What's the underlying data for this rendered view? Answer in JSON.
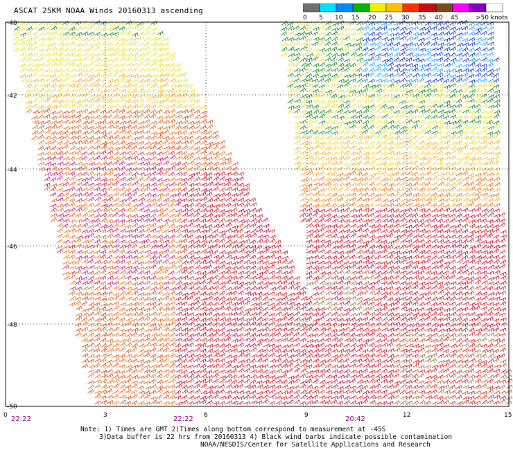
{
  "title": "ASCAT 25KM NOAA Winds 20160313 ascending",
  "legend": {
    "labels": [
      "0",
      "5",
      "10",
      "15",
      "20",
      "25",
      "30",
      "35",
      "40",
      "45",
      ">50 knots"
    ],
    "colors": [
      "#6e6e6e",
      "#00e0ff",
      "#0088ff",
      "#00b400",
      "#f0f000",
      "#ffc000",
      "#ff3000",
      "#c01010",
      "#7a4a1a",
      "#ff00ff",
      "#8000c0",
      "#ffffff"
    ]
  },
  "map": {
    "latitude_ticks": [
      "-40",
      "-42",
      "-44",
      "-46",
      "-48",
      "-50"
    ],
    "longitude_ticks": [
      "0",
      "3",
      "6",
      "9",
      "12",
      "15"
    ],
    "time_labels": [
      "22:22",
      "22:22",
      "20:42"
    ],
    "time_label_color": "#800080"
  },
  "notes": {
    "line1": "Note: 1) Times are GMT 2)Times along bottom correspond to measurement at -45S",
    "line2": "3)Data buffer is 22 hrs from 20160313 4) Black wind barbs indicate possible contamination",
    "line3": "NOAA/NESDIS/Center for Satellite Applications and Research"
  }
}
